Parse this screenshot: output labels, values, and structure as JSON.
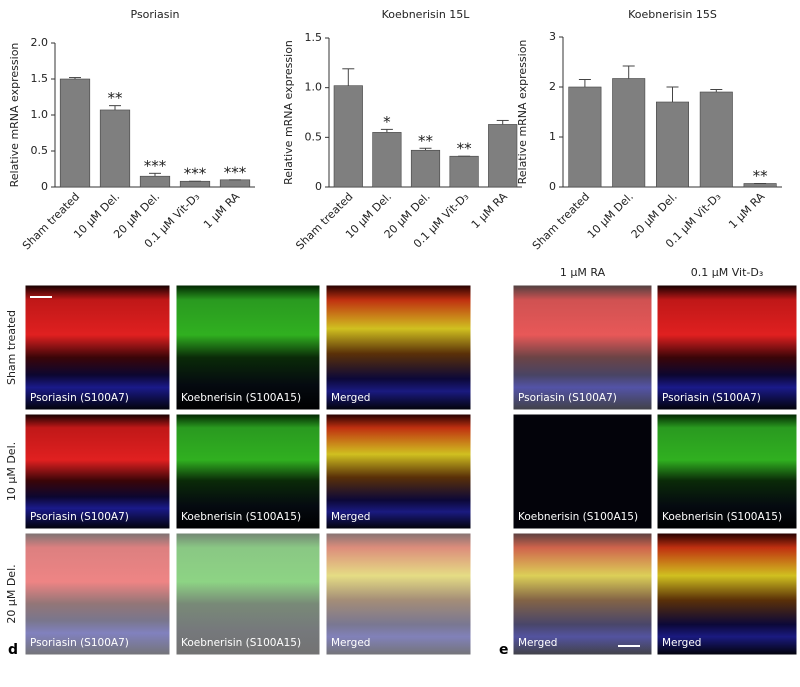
{
  "chart_data": [
    {
      "type": "bar",
      "title": "Psoriasin",
      "y_label": "Relative mRNA expression",
      "color": "#7f7f7f",
      "categories": [
        "Sham treated",
        "10 μM Del.",
        "20 μM Del.",
        "0.1 μM Vit-D₃",
        "1 μM RA"
      ],
      "values": [
        1.5,
        1.07,
        0.15,
        0.08,
        0.1
      ],
      "errors": [
        0.02,
        0.06,
        0.04,
        0,
        0
      ],
      "annotations": [
        null,
        "**",
        "***",
        "***",
        "***"
      ],
      "ylim": [
        0,
        2
      ],
      "yticks": [
        0,
        0.5,
        {
          "value": 1,
          "label": "1.0"
        },
        1.5,
        {
          "value": 2,
          "label": "2.0"
        }
      ]
    },
    {
      "type": "bar",
      "title": "Koebnerisin 15L",
      "y_label": "Relative mRNA expression",
      "color": "#7f7f7f",
      "categories": [
        "Sham treated",
        "10 μM Del.",
        "20 μM Del.",
        "0.1 μM Vit-D₃",
        "1 μM RA"
      ],
      "values": [
        1.02,
        0.55,
        0.37,
        0.31,
        0.63
      ],
      "errors": [
        0.17,
        0.03,
        0.02,
        0,
        0.04
      ],
      "annotations": [
        null,
        "*",
        "**",
        "**",
        null
      ],
      "ylim": [
        0,
        1.5
      ],
      "yticks": [
        0,
        0.5,
        {
          "value": 1,
          "label": "1.0"
        },
        1.5
      ]
    },
    {
      "type": "bar",
      "title": "Koebnerisin 15S",
      "y_label": "Relative mRNA expression",
      "color": "#7f7f7f",
      "categories": [
        "Sham treated",
        "10 μM Del.",
        "20 μM Del.",
        "0.1 μM Vit-D₃",
        "1 μM RA"
      ],
      "values": [
        2.0,
        2.17,
        1.7,
        1.9,
        0.07
      ],
      "errors": [
        0.15,
        0.25,
        0.3,
        0.05,
        0
      ],
      "annotations": [
        null,
        null,
        null,
        null,
        "**"
      ],
      "ylim": [
        0,
        3
      ],
      "yticks": [
        0,
        1,
        2,
        3
      ]
    }
  ],
  "panel_d": {
    "letter": "d",
    "rows": [
      "Sham treated",
      "10 μM Del.",
      "20 μM Del."
    ],
    "labels": [
      "Psoriasin (S100A7)",
      "Koebnerisin (S100A15)",
      "Merged"
    ]
  },
  "panel_e": {
    "letter": "e",
    "columns": [
      "1 μM RA",
      "0.1 μM Vit-D₃"
    ],
    "labels": [
      "Psoriasin (S100A7)",
      "Koebnerisin (S100A15)",
      "Merged"
    ]
  }
}
